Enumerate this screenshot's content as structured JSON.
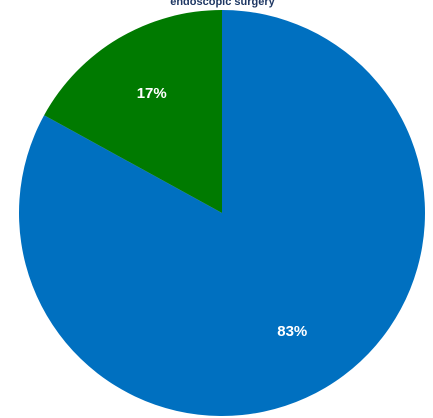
{
  "chart_data": {
    "type": "pie",
    "title": "endoscopic surgery",
    "slices": [
      {
        "label": "83%",
        "value": 83,
        "color": "#0070c0"
      },
      {
        "label": "17%",
        "value": 17,
        "color": "#007a00"
      }
    ]
  }
}
